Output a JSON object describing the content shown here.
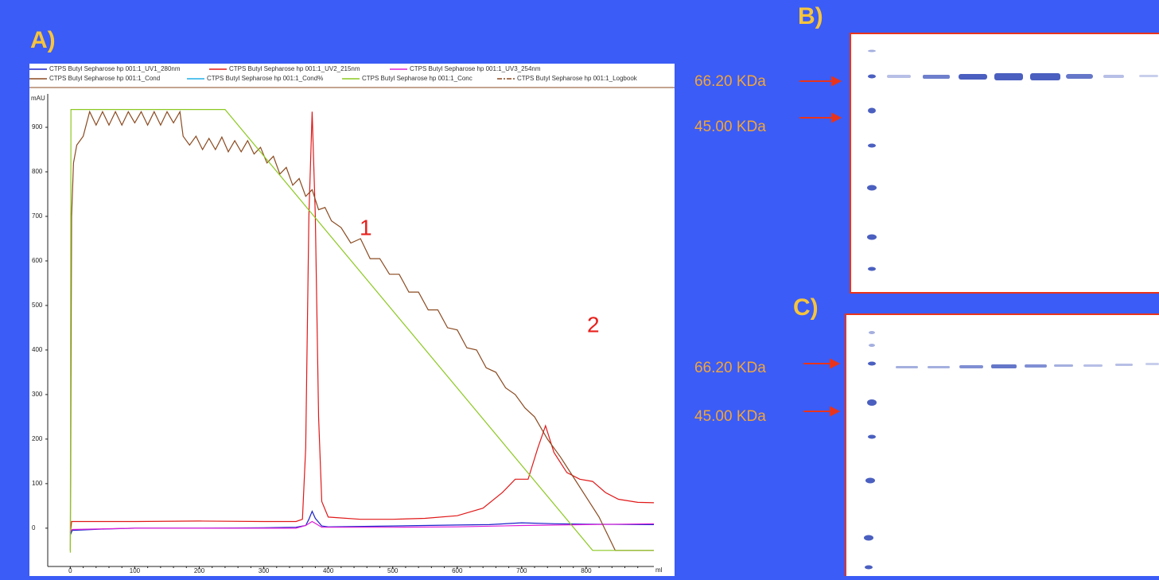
{
  "panels": {
    "a": {
      "label": "A)"
    },
    "b": {
      "label": "B)",
      "markers": [
        "66.20 KDa",
        "45.00 KDa"
      ]
    },
    "c": {
      "label": "C)",
      "markers": [
        "66.20 KDa",
        "45.00 KDa"
      ]
    }
  },
  "chart_data": {
    "type": "line",
    "x_label": "ml",
    "y_label": "mAU",
    "annotations": [
      "1",
      "2"
    ],
    "xlim": [
      -35,
      905
    ],
    "ylim": [
      -86,
      975
    ],
    "xticks": [
      0,
      100,
      200,
      300,
      400,
      500,
      600,
      700,
      800
    ],
    "yticks": [
      0,
      100,
      200,
      300,
      400,
      500,
      600,
      700,
      800,
      900
    ],
    "series": [
      {
        "name": "CTPS Butyl Sepharose hp 001:1_UV1_280nm",
        "color": "#1a22c8",
        "x": [
          0,
          3,
          50,
          100,
          200,
          300,
          350,
          365,
          370,
          375,
          380,
          390,
          400,
          500,
          600,
          650,
          700,
          750,
          800,
          905
        ],
        "values": [
          -15,
          -5,
          -2,
          0,
          0,
          1,
          2,
          6,
          20,
          38,
          22,
          5,
          3,
          5,
          7,
          8,
          12,
          10,
          9,
          8
        ]
      },
      {
        "name": "CTPS Butyl Sepharose hp 001:1_UV2_215nm",
        "color": "#e01818",
        "x": [
          0,
          2,
          100,
          200,
          300,
          350,
          360,
          365,
          370,
          375,
          380,
          385,
          390,
          400,
          450,
          500,
          550,
          600,
          640,
          670,
          690,
          710,
          725,
          737,
          750,
          770,
          790,
          810,
          830,
          850,
          880,
          905
        ],
        "values": [
          -10,
          15,
          15,
          16,
          15,
          15,
          20,
          180,
          700,
          935,
          700,
          250,
          60,
          25,
          20,
          20,
          22,
          28,
          45,
          80,
          110,
          110,
          180,
          230,
          170,
          125,
          110,
          105,
          80,
          65,
          58,
          57
        ]
      },
      {
        "name": "CTPS Butyl Sepharose hp 001:1_UV3_254nm",
        "color": "#e020d8",
        "x": [
          0,
          3,
          100,
          200,
          350,
          365,
          375,
          390,
          500,
          600,
          700,
          800,
          905
        ],
        "values": [
          -8,
          -3,
          0,
          0,
          0,
          6,
          15,
          2,
          2,
          3,
          6,
          8,
          10
        ]
      },
      {
        "name": "CTPS Butyl Sepharose hp 001:1_Cond",
        "color": "#8a4a20",
        "x": [
          0,
          2,
          5,
          10,
          20,
          30,
          40,
          50,
          60,
          70,
          80,
          90,
          100,
          110,
          120,
          130,
          140,
          150,
          160,
          170,
          175,
          185,
          195,
          205,
          215,
          225,
          235,
          245,
          255,
          265,
          275,
          285,
          295,
          305,
          315,
          325,
          335,
          345,
          355,
          365,
          375,
          385,
          395,
          405,
          420,
          435,
          450,
          465,
          480,
          495,
          510,
          525,
          540,
          555,
          570,
          585,
          600,
          615,
          630,
          645,
          660,
          675,
          690,
          705,
          720,
          740,
          760,
          780,
          800,
          820,
          845,
          905
        ],
        "values": [
          -50,
          700,
          820,
          860,
          880,
          935,
          905,
          935,
          905,
          935,
          905,
          935,
          910,
          935,
          905,
          935,
          905,
          935,
          910,
          935,
          880,
          860,
          880,
          850,
          875,
          850,
          878,
          845,
          870,
          845,
          870,
          840,
          855,
          820,
          835,
          795,
          810,
          770,
          785,
          745,
          760,
          715,
          720,
          690,
          675,
          640,
          650,
          605,
          605,
          570,
          570,
          530,
          530,
          490,
          490,
          450,
          445,
          405,
          400,
          360,
          350,
          315,
          300,
          270,
          250,
          200,
          160,
          115,
          70,
          25,
          -50,
          -50
        ]
      },
      {
        "name": "CTPS Butyl Sepharose hp 001:1_Cond%",
        "color": "#20b0e8"
      },
      {
        "name": "CTPS Butyl Sepharose hp 001:1_Conc",
        "color": "#8cc820",
        "x": [
          0,
          1,
          240,
          810,
          905
        ],
        "values": [
          -55,
          940,
          940,
          -50,
          -50
        ]
      },
      {
        "name": "CTPS Butyl Sepharose hp 001:1_Logbook",
        "color": "#8a4a20"
      }
    ]
  }
}
